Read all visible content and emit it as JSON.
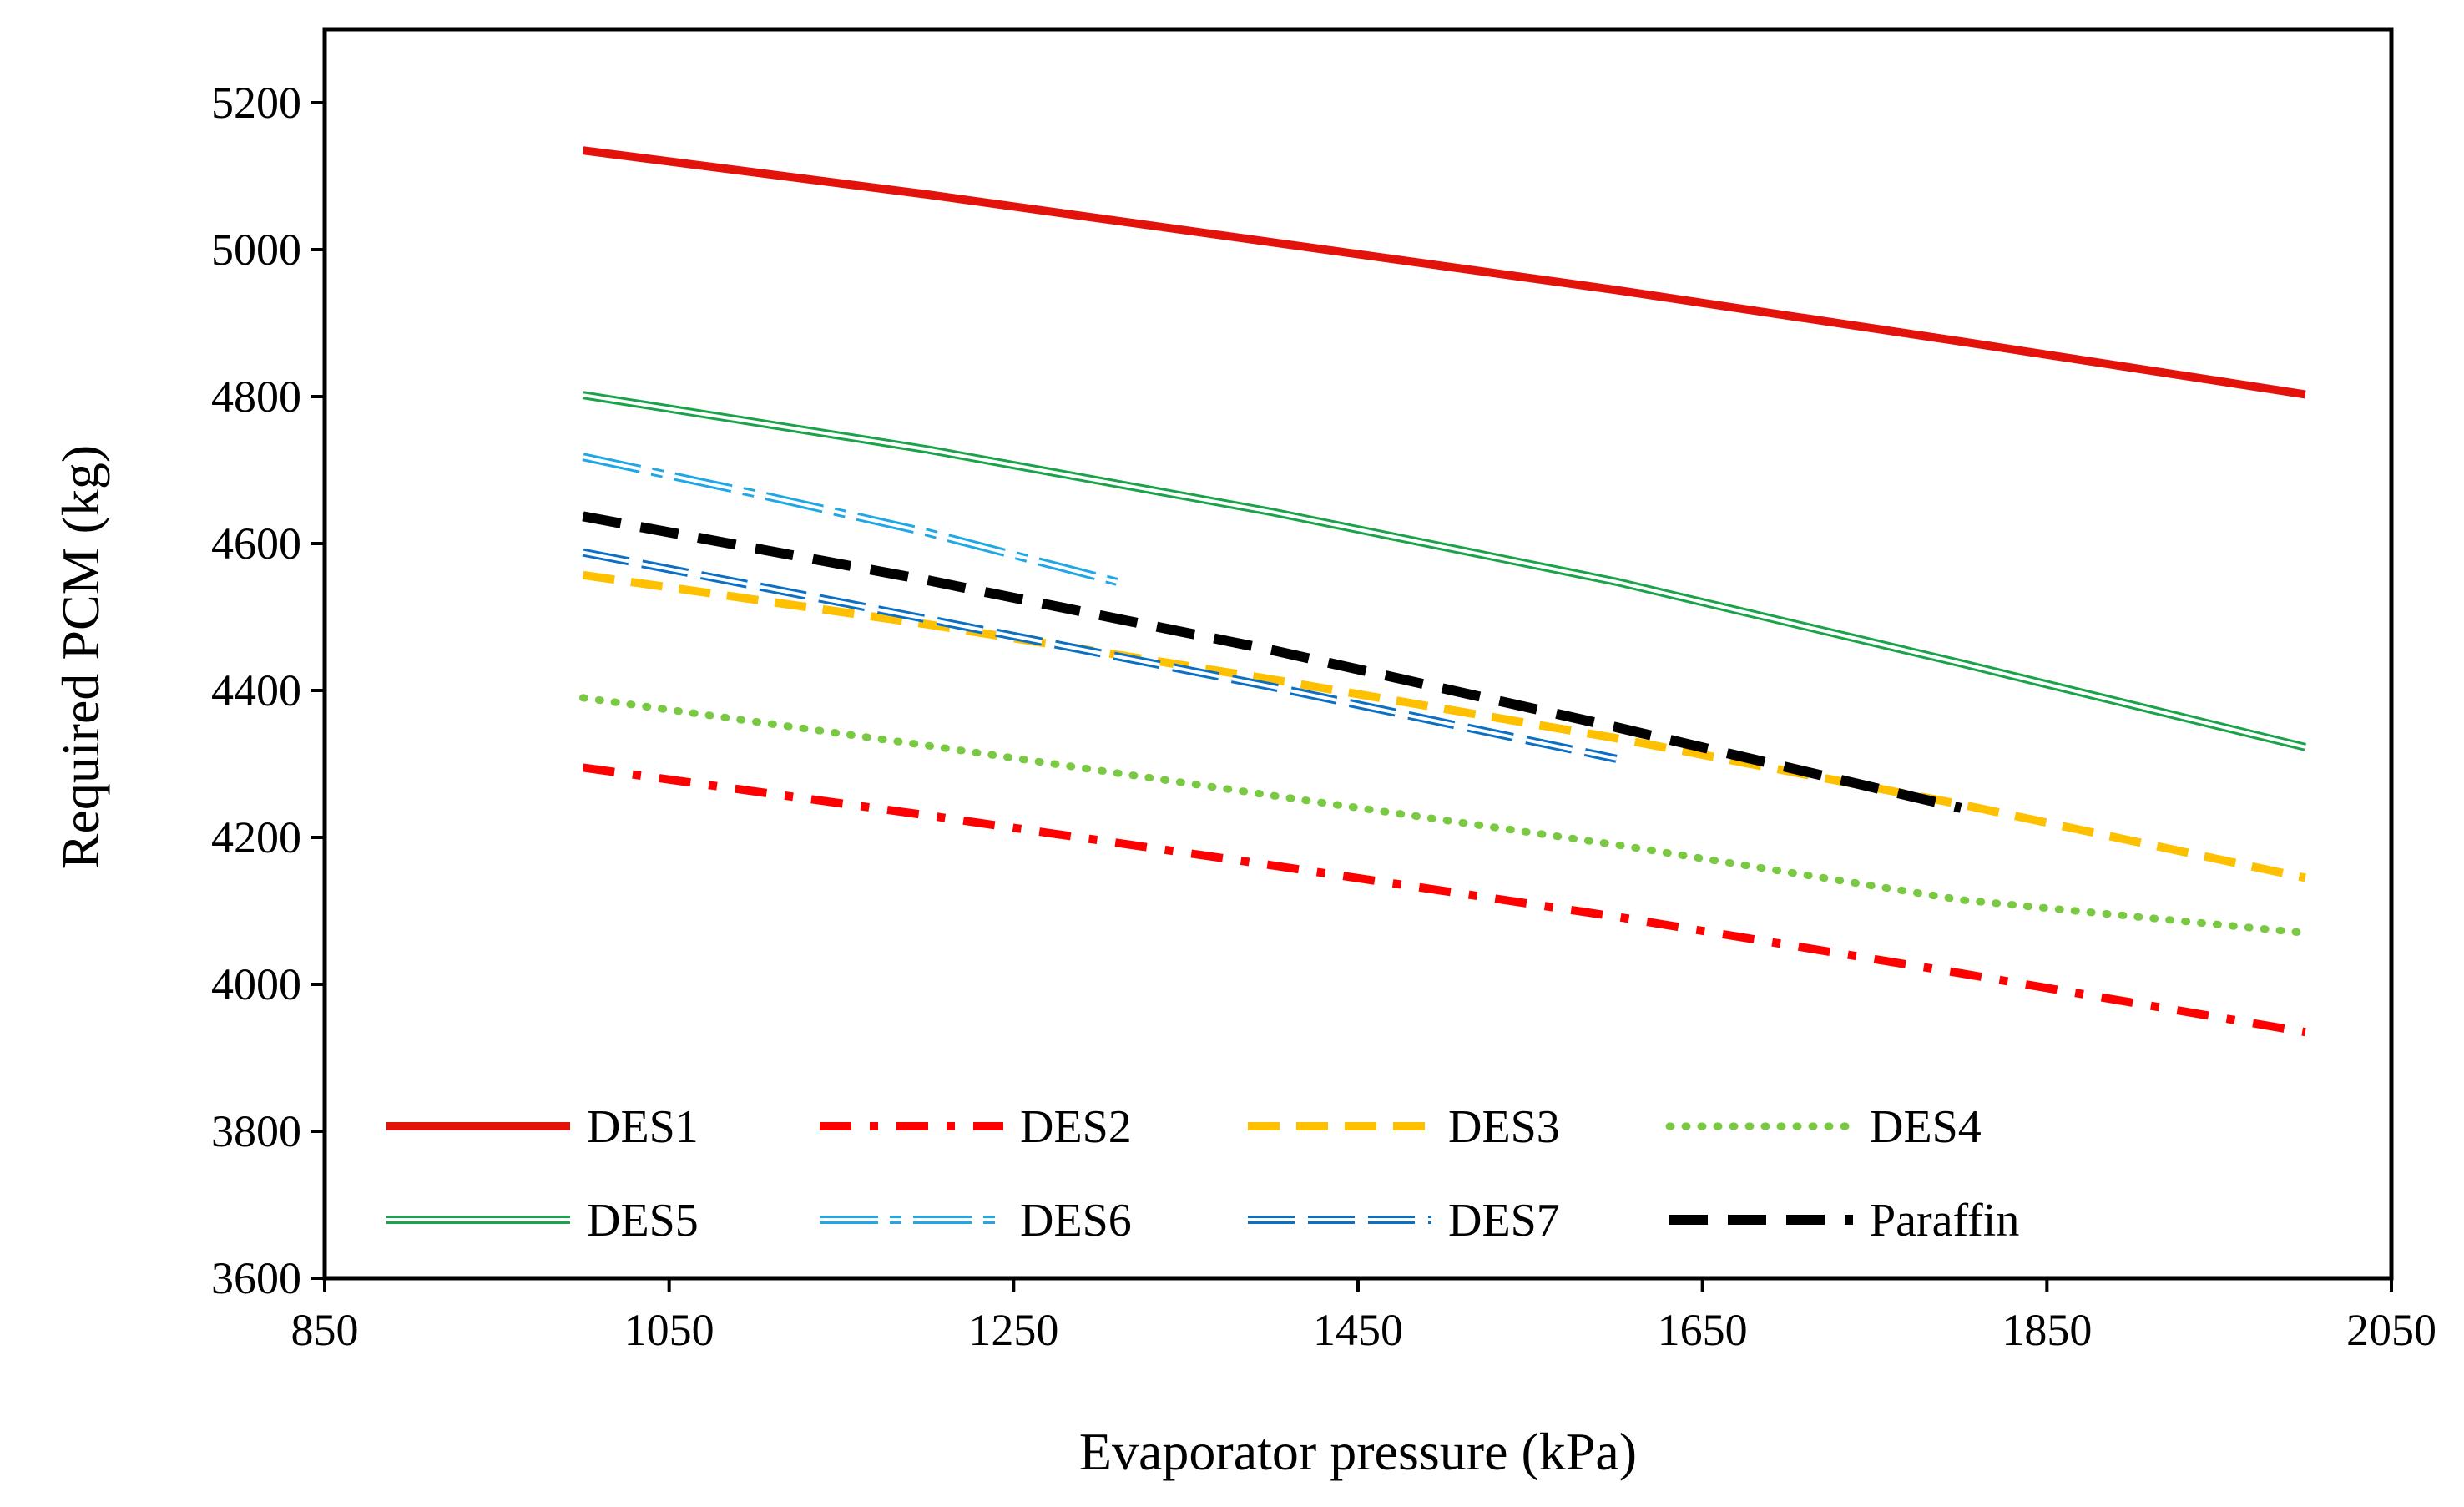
{
  "chart_data": {
    "type": "line",
    "title": "",
    "xlabel": "Evaporator pressure (kPa)",
    "ylabel": "Required PCM (kg)",
    "xlim": [
      850,
      2050
    ],
    "ylim": [
      3600,
      5300
    ],
    "xticks": [
      850,
      1050,
      1250,
      1450,
      1650,
      1850,
      2050
    ],
    "yticks": [
      3600,
      3800,
      4000,
      4200,
      4400,
      4600,
      4800,
      5000,
      5200
    ],
    "grid": false,
    "legend_position": "bottom-inside",
    "series": [
      {
        "name": "DES1",
        "color": "#e3120b",
        "style": "solid-thick",
        "x": [
          1000,
          1200,
          1400,
          1600,
          1800,
          2000
        ],
        "y": [
          5135,
          5075,
          5010,
          4945,
          4875,
          4803
        ]
      },
      {
        "name": "DES2",
        "color": "#ff0000",
        "style": "dash-dot",
        "x": [
          1000,
          1200,
          1400,
          1600,
          1800,
          2000
        ],
        "y": [
          4295,
          4230,
          4162,
          4092,
          4015,
          3935
        ]
      },
      {
        "name": "DES3",
        "color": "#ffc000",
        "style": "dash",
        "x": [
          1000,
          1200,
          1400,
          1600,
          1800,
          2000
        ],
        "y": [
          4557,
          4490,
          4415,
          4335,
          4245,
          4145
        ]
      },
      {
        "name": "DES4",
        "color": "#7ac943",
        "style": "dot",
        "x": [
          1000,
          1200,
          1400,
          1600,
          1800,
          2000
        ],
        "y": [
          4390,
          4325,
          4257,
          4190,
          4115,
          4070
        ]
      },
      {
        "name": "DES5",
        "color": "#1aa34a",
        "style": "double",
        "x": [
          1000,
          1200,
          1400,
          1600,
          1800,
          2000
        ],
        "y": [
          4802,
          4728,
          4643,
          4548,
          4437,
          4323
        ]
      },
      {
        "name": "DES6",
        "color": "#1fa7e6",
        "style": "double-dash-dot",
        "x": [
          1000,
          1100,
          1200,
          1310
        ],
        "y": [
          4718,
          4668,
          4615,
          4548
        ]
      },
      {
        "name": "DES7",
        "color": "#0b6fc4",
        "style": "double-dash",
        "x": [
          1000,
          1200,
          1400,
          1600
        ],
        "y": [
          4588,
          4497,
          4405,
          4307
        ]
      },
      {
        "name": "Paraffin",
        "color": "#000000",
        "style": "dash-thick",
        "x": [
          1000,
          1200,
          1400,
          1600,
          1800
        ],
        "y": [
          4637,
          4550,
          4455,
          4350,
          4240
        ]
      }
    ]
  }
}
